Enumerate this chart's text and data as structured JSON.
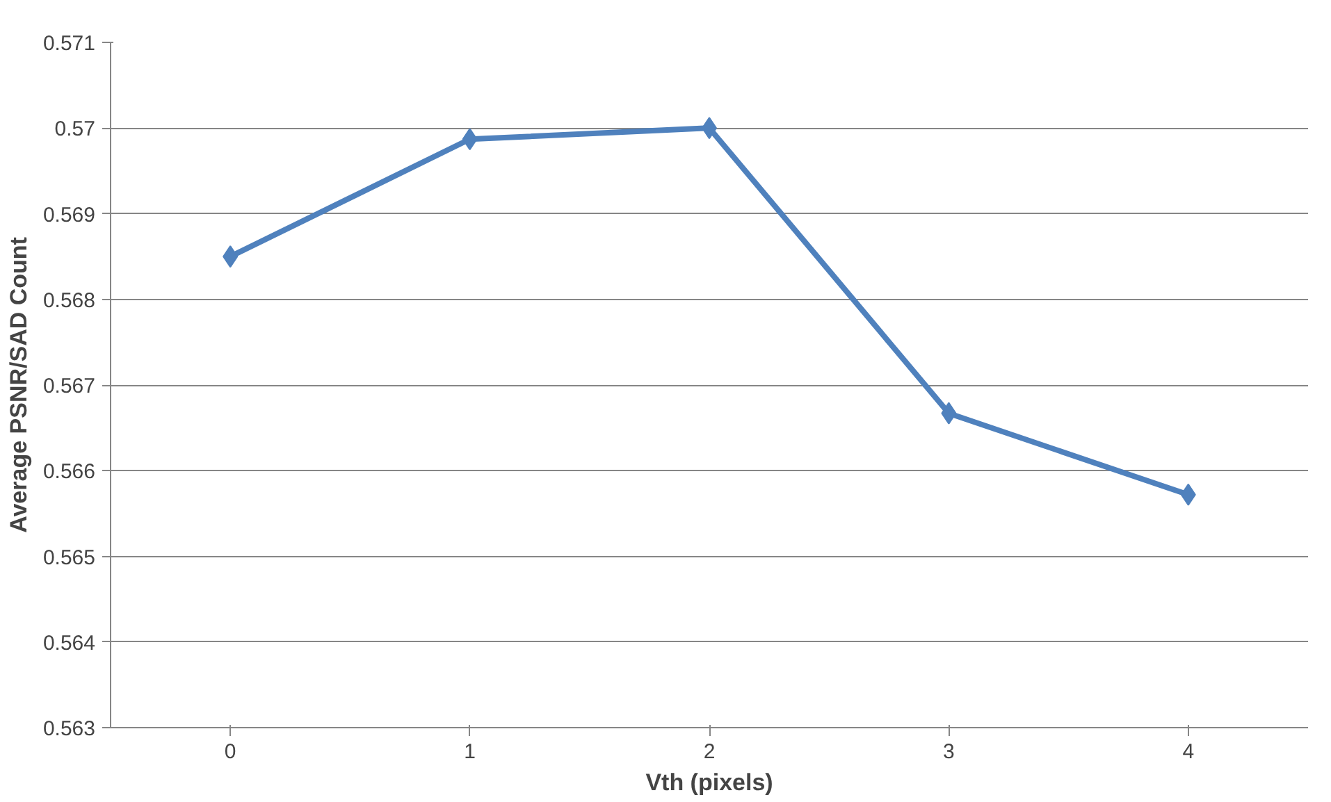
{
  "chart_data": {
    "type": "line",
    "xlabel": "Vth (pixels)",
    "ylabel": "Average PSNR/SAD Count",
    "categories": [
      "0",
      "1",
      "2",
      "3",
      "4"
    ],
    "series": [
      {
        "color": "#4f81bd",
        "values": [
          0.5685,
          0.56987,
          0.57,
          0.56667,
          0.56572
        ]
      }
    ],
    "ylim": [
      0.563,
      0.571
    ],
    "yticks": [
      0.563,
      0.564,
      0.565,
      0.566,
      0.567,
      0.568,
      0.569,
      0.57,
      0.571
    ],
    "grid": "y",
    "marker": "diamond",
    "line_style": "solid"
  }
}
